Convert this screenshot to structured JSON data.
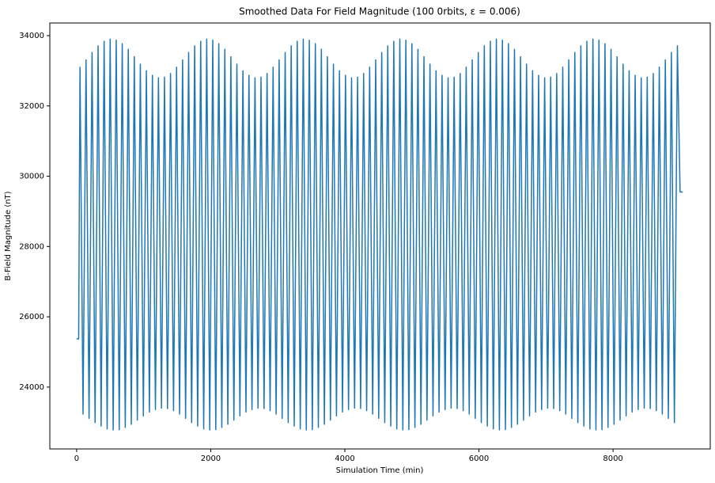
{
  "chart_data": {
    "type": "line",
    "title": "Smoothed Data For Field Magnitude (100 0rbits, ε = 0.006)",
    "x_label": "Simulation Time (min)",
    "y_label": "B-Field Magnitude (nT)",
    "x": [
      0,
      30,
      50,
      95,
      140,
      185,
      230,
      275,
      320,
      365,
      410,
      455,
      500,
      545,
      590,
      635,
      680,
      725,
      770,
      815,
      860,
      905,
      950,
      995,
      1040,
      1085,
      1130,
      1175,
      1220,
      1265,
      1310,
      1355,
      1400,
      1445,
      1490,
      1535,
      1580,
      1625,
      1670,
      1715,
      1760,
      1805,
      1850,
      1895,
      1940,
      1985,
      2030,
      2075,
      2120,
      2165,
      2210,
      2255,
      2300,
      2345,
      2390,
      2435,
      2480,
      2525,
      2570,
      2615,
      2660,
      2705,
      2750,
      2795,
      2840,
      2885,
      2930,
      2975,
      3020,
      3065,
      3110,
      3155,
      3200,
      3245,
      3290,
      3335,
      3380,
      3425,
      3470,
      3515,
      3560,
      3605,
      3650,
      3695,
      3740,
      3785,
      3830,
      3875,
      3920,
      3965,
      4010,
      4055,
      4100,
      4145,
      4190,
      4235,
      4280,
      4325,
      4370,
      4415,
      4460,
      4505,
      4550,
      4595,
      4640,
      4685,
      4730,
      4775,
      4820,
      4865,
      4910,
      4955,
      5000,
      5045,
      5090,
      5135,
      5180,
      5225,
      5270,
      5315,
      5360,
      5405,
      5450,
      5495,
      5540,
      5585,
      5630,
      5675,
      5720,
      5765,
      5810,
      5855,
      5900,
      5945,
      5990,
      6035,
      6080,
      6125,
      6170,
      6215,
      6260,
      6305,
      6350,
      6395,
      6440,
      6485,
      6530,
      6575,
      6620,
      6665,
      6710,
      6755,
      6800,
      6845,
      6890,
      6935,
      6980,
      7025,
      7070,
      7115,
      7160,
      7205,
      7250,
      7295,
      7340,
      7385,
      7430,
      7475,
      7520,
      7565,
      7610,
      7655,
      7700,
      7745,
      7790,
      7835,
      7880,
      7925,
      7970,
      8015,
      8060,
      8105,
      8150,
      8195,
      8240,
      8285,
      8330,
      8375,
      8420,
      8465,
      8510,
      8555,
      8600,
      8645,
      8690,
      8735,
      8780,
      8825,
      8870,
      8915,
      8960,
      9000,
      9040
    ],
    "series": [
      {
        "color": "#1f77b4",
        "values": [
          25370,
          25370,
          33100,
          23230,
          33310,
          23110,
          33520,
          22990,
          33710,
          22890,
          33840,
          22810,
          33900,
          22780,
          33870,
          22790,
          33770,
          22850,
          33610,
          22940,
          33400,
          23060,
          33190,
          23180,
          33000,
          23290,
          32870,
          23360,
          32800,
          23400,
          32820,
          23390,
          32920,
          23330,
          33100,
          23230,
          33310,
          23110,
          33520,
          22990,
          33710,
          22890,
          33840,
          22810,
          33900,
          22780,
          33870,
          22790,
          33770,
          22850,
          33610,
          22940,
          33400,
          23060,
          33190,
          23180,
          33000,
          23290,
          32870,
          23360,
          32800,
          23400,
          32820,
          23390,
          32920,
          23330,
          33100,
          23230,
          33310,
          23110,
          33520,
          22990,
          33710,
          22890,
          33840,
          22810,
          33900,
          22780,
          33870,
          22790,
          33770,
          22850,
          33610,
          22940,
          33400,
          23060,
          33190,
          23180,
          33000,
          23290,
          32870,
          23360,
          32800,
          23400,
          32820,
          23390,
          32920,
          23330,
          33100,
          23230,
          33310,
          23110,
          33520,
          22990,
          33710,
          22890,
          33840,
          22810,
          33900,
          22780,
          33870,
          22790,
          33770,
          22850,
          33610,
          22940,
          33400,
          23060,
          33190,
          23180,
          33000,
          23290,
          32870,
          23360,
          32800,
          23400,
          32820,
          23390,
          32920,
          23330,
          33100,
          23230,
          33310,
          23110,
          33520,
          22990,
          33710,
          22890,
          33840,
          22810,
          33900,
          22780,
          33870,
          22790,
          33770,
          22850,
          33610,
          22940,
          33400,
          23060,
          33190,
          23180,
          33000,
          23290,
          32870,
          23360,
          32800,
          23400,
          32820,
          23390,
          32920,
          23330,
          33100,
          23230,
          33310,
          23110,
          33520,
          22990,
          33710,
          22890,
          33840,
          22810,
          33900,
          22780,
          33870,
          22790,
          33770,
          22850,
          33610,
          22940,
          33400,
          23060,
          33190,
          23180,
          33000,
          23290,
          32870,
          23360,
          32800,
          23400,
          32820,
          23390,
          32920,
          23330,
          33100,
          23230,
          33310,
          23110,
          33520,
          22990,
          33710,
          29550,
          29550
        ]
      }
    ],
    "xlim": [
      -400,
      9450
    ],
    "xticks": [
      0,
      2000,
      4000,
      6000,
      8000
    ],
    "ylim": [
      22240,
      34360
    ],
    "yticks": [
      24000,
      26000,
      28000,
      30000,
      32000,
      34000
    ]
  }
}
